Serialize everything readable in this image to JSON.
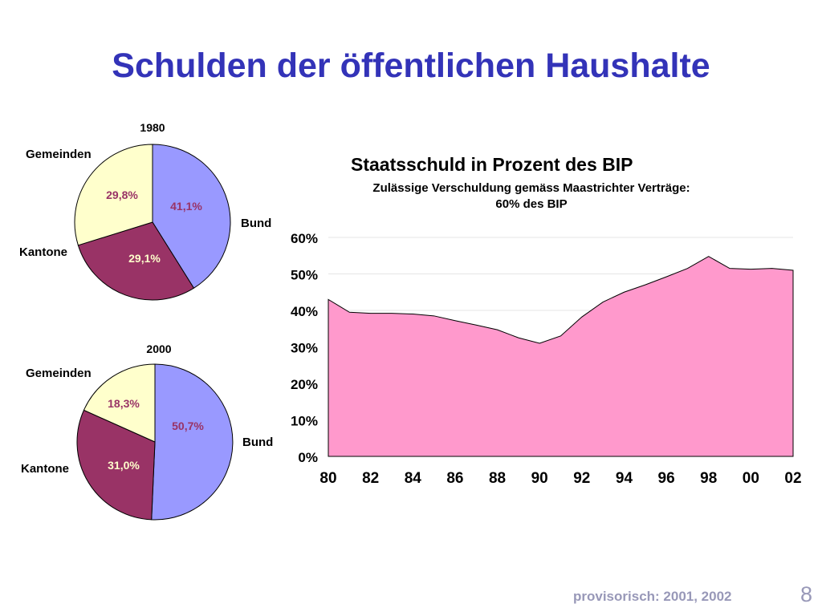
{
  "slide": {
    "title": "Schulden der öffentlichen Haushalte",
    "footnote": "provisorisch: 2001, 2002",
    "page_number": "8"
  },
  "colors": {
    "title": "#3333b8",
    "bund": "#9999ff",
    "kantone": "#993366",
    "gemeinden": "#ffffcc",
    "area_fill": "#ff99cc",
    "footer": "#9898b8"
  },
  "chart_data": [
    {
      "type": "pie",
      "year": "1980",
      "slices": [
        {
          "label": "Bund",
          "value": 41.1,
          "display": "41,1%",
          "color": "#9999ff"
        },
        {
          "label": "Kantone",
          "value": 29.1,
          "display": "29,1%",
          "color": "#993366"
        },
        {
          "label": "Gemeinden",
          "value": 29.8,
          "display": "29,8%",
          "color": "#ffffcc"
        }
      ]
    },
    {
      "type": "pie",
      "year": "2000",
      "slices": [
        {
          "label": "Bund",
          "value": 50.7,
          "display": "50,7%",
          "color": "#9999ff"
        },
        {
          "label": "Kantone",
          "value": 31.0,
          "display": "31,0%",
          "color": "#993366"
        },
        {
          "label": "Gemeinden",
          "value": 18.3,
          "display": "18,3%",
          "color": "#ffffcc"
        }
      ]
    },
    {
      "type": "area",
      "title": "Staatsschuld in Prozent des BIP",
      "subtitle_line1": "Zulässige Verschuldung gemäss Maastrichter Verträge:",
      "subtitle_line2": "60% des BIP",
      "x": [
        80,
        81,
        82,
        83,
        84,
        85,
        86,
        87,
        88,
        89,
        90,
        91,
        92,
        93,
        94,
        95,
        96,
        97,
        98,
        99,
        100,
        101,
        102
      ],
      "x_ticks": [
        "80",
        "82",
        "84",
        "86",
        "88",
        "90",
        "92",
        "94",
        "96",
        "98",
        "00",
        "02"
      ],
      "y_ticks": [
        "0%",
        "10%",
        "20%",
        "30%",
        "40%",
        "50%",
        "60%"
      ],
      "values": [
        43,
        39.5,
        39.2,
        39.2,
        39,
        38.5,
        37.2,
        36,
        34.7,
        32.5,
        31,
        33,
        38.2,
        42.3,
        45,
        47,
        49.2,
        51.5,
        54.8,
        51.5,
        51.3,
        51.5,
        51
      ],
      "ylim": [
        0,
        60
      ],
      "grid": true
    }
  ]
}
